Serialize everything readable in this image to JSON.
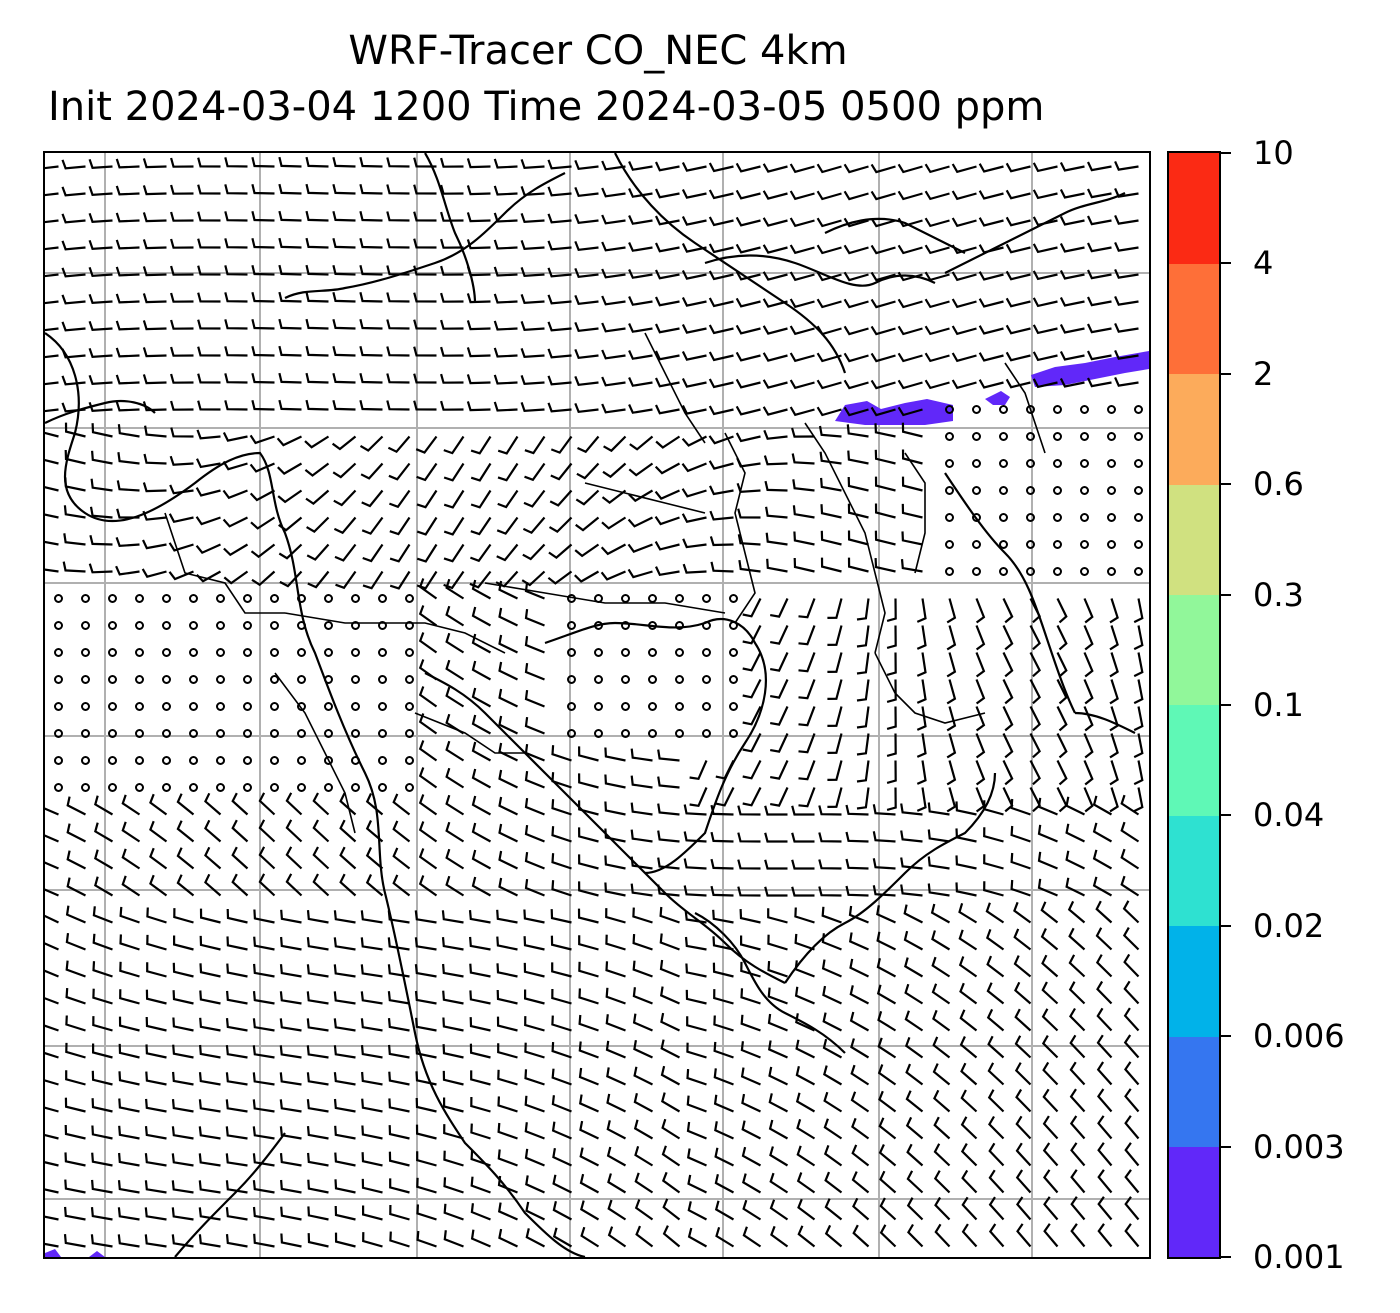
{
  "title": {
    "line1": "WRF-Tracer CO_NEC 4km",
    "line2": "Init 2024-03-04 1200 Time 2024-03-05 0500 ppm"
  },
  "colorbar": {
    "levels": [
      "0.001",
      "0.003",
      "0.006",
      "0.02",
      "0.04",
      "0.1",
      "0.3",
      "0.6",
      "2",
      "4",
      "10"
    ],
    "colors": [
      "#6128f9",
      "#3576f0",
      "#01b2e9",
      "#2ee1d1",
      "#5ff8b6",
      "#91f79a",
      "#d0e180",
      "#fcab5b",
      "#fe6f38",
      "#fb2a14"
    ]
  },
  "map": {
    "layers": [
      "coastlines",
      "state-borders",
      "gridlines",
      "wind-barbs",
      "tracer-fill"
    ],
    "tracer_color": "#6128f9",
    "barb_color": "#000000",
    "grid_color": "#b0b0b0"
  }
}
